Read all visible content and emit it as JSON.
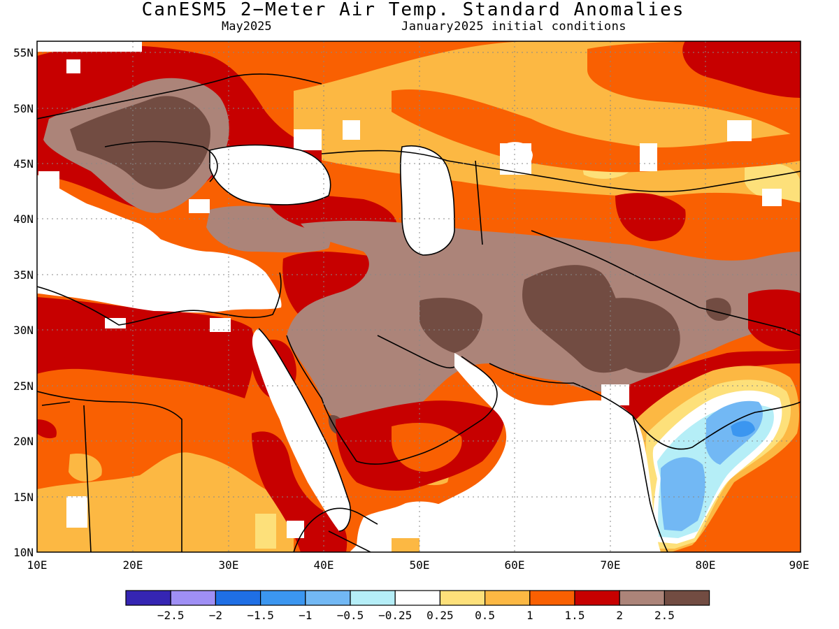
{
  "title": "CanESM5 2−Meter Air Temp. Standard Anomalies",
  "subtitle_left": "May2025",
  "subtitle_right": "January2025 initial conditions",
  "lon_labels": [
    "10E",
    "20E",
    "30E",
    "40E",
    "50E",
    "60E",
    "70E",
    "80E",
    "90E"
  ],
  "lat_labels": [
    "55N",
    "50N",
    "45N",
    "40N",
    "35N",
    "30N",
    "25N",
    "20N",
    "15N",
    "10N"
  ],
  "colorbar": {
    "colors": [
      "#3525b3",
      "#9f8ff5",
      "#1f6fe5",
      "#3b96f0",
      "#72b8f4",
      "#b5eef7",
      "#ffffff",
      "#fde07a",
      "#fcb843",
      "#f96002",
      "#c70000",
      "#ac8479",
      "#724c42"
    ],
    "labels": [
      "−2.5",
      "−2",
      "−1.5",
      "−1",
      "−0.5",
      "−0.25",
      "0.25",
      "0.5",
      "1",
      "1.5",
      "2",
      "2.5"
    ]
  },
  "map_region": {
    "lon_range": [
      10,
      90
    ],
    "lat_range": [
      10,
      56
    ]
  }
}
